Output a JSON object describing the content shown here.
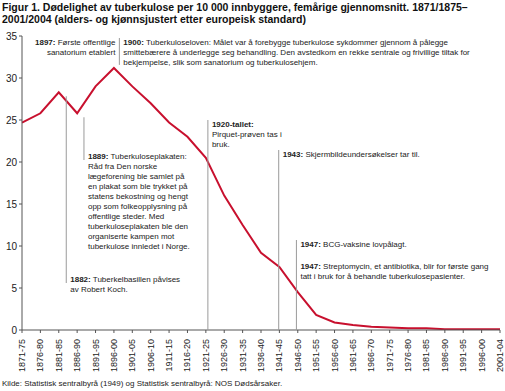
{
  "chart_data": {
    "type": "line",
    "title": "Figur 1. Dødelighet av tuberkulose per 10 000 innbyggere, femårige gjennomsnitt. 1871/1875–2001/2004 (alders- og kjønnsjustert etter europeisk standard)",
    "source": "Kilde: Statistisk sentralbyrå (1949) og Statistisk sentralbyrå: NOS Dødsårsaker.",
    "categories": [
      "1871-75",
      "1876-80",
      "1881-85",
      "1886-90",
      "1891-95",
      "1896-00",
      "1901-05",
      "1906-10",
      "1911-15",
      "1916-20",
      "1921-25",
      "1926-30",
      "1931-35",
      "1936-40",
      "1941-45",
      "1946-50",
      "1951-55",
      "1956-60",
      "1961-65",
      "1966-70",
      "1971-75",
      "1976-80",
      "1981-85",
      "1986-90",
      "1991-95",
      "1996-00",
      "2001-04"
    ],
    "values": [
      24.7,
      25.8,
      28.3,
      25.8,
      29.0,
      31.2,
      29.0,
      27.0,
      24.7,
      23.0,
      20.5,
      16.0,
      12.5,
      9.2,
      7.5,
      4.5,
      1.8,
      0.9,
      0.6,
      0.4,
      0.3,
      0.2,
      0.2,
      0.1,
      0.1,
      0.1,
      0.1
    ],
    "color": "#c8102e",
    "ylim": [
      0,
      35
    ],
    "yticks": [
      0,
      5,
      10,
      15,
      20,
      25,
      30,
      35
    ],
    "grid": false,
    "annotations": [
      {
        "category": "1881-85",
        "label": "1882:",
        "text": "Tuberkelbasillen påvises av Robert Koch."
      },
      {
        "category": "1886-90",
        "label": "1889:",
        "text": "Tuberkuloseplakaten: Råd fra Den norske lægeforening ble samlet på en plakat som ble trykket på statens bekostning og hengt opp som folkeopplysning på offentlige steder. Med tuberkuloseplakaten ble den organiserte kampen mot tuberkulose innledet i Norge."
      },
      {
        "category": "1896-00",
        "label": "1897:",
        "text": "Første offentlige sanatorium etablert"
      },
      {
        "category": "1896-00",
        "label": "1900:",
        "text": "Tuberkuloseloven: Målet var å forebygge tuberkulose sykdommer gjennom å pålegge smittebærere å underlegge seg behandling. Den avstedkom en rekke sentrale og frivillige tiltak for bekjempelse, slik som sanatorium og tuberkulosehjem."
      },
      {
        "category": "1921-25",
        "label": "1920-tallet:",
        "text": "Pirquet-prøven tas i bruk."
      },
      {
        "category": "1941-45",
        "label": "1943:",
        "text": "Skjermbildeundersøkelser tar til."
      },
      {
        "category": "1946-50",
        "label": "1947:",
        "text": "BCG-vaksine lovpålagt."
      },
      {
        "category": "1946-50",
        "label": "1947:",
        "text": "Streptomycin, et antibiotika, blir for første gang tatt i bruk for å behandle tuberkulosepasienter."
      }
    ]
  }
}
